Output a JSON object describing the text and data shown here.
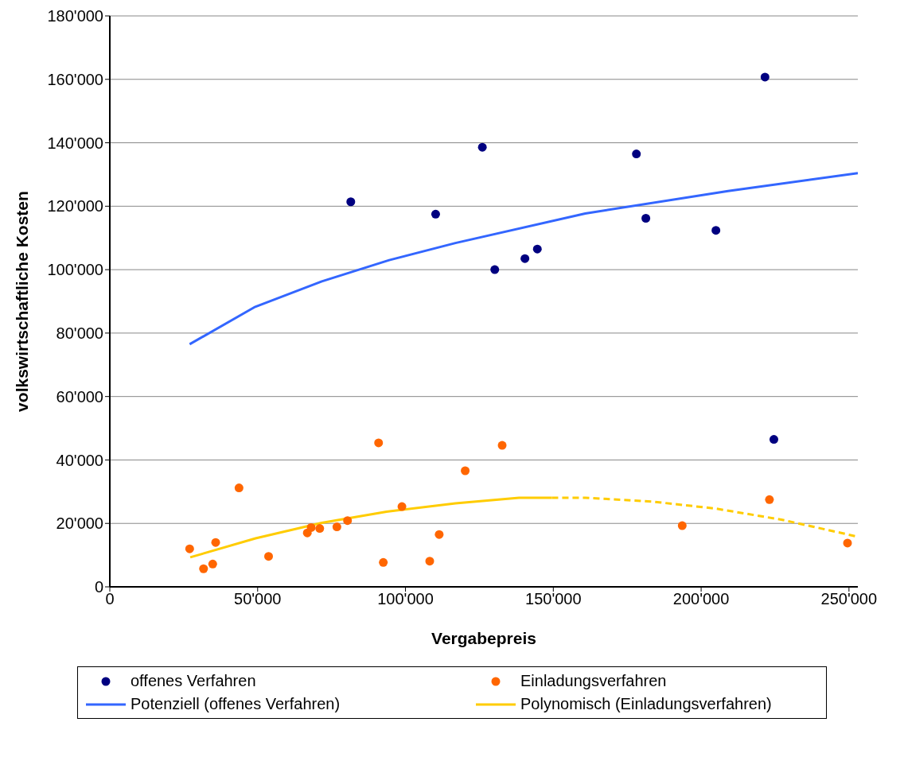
{
  "chart_data": {
    "type": "scatter",
    "xlabel": "Vergabepreis",
    "ylabel": "volkswirtschaftliche Kosten",
    "xlim": [
      0,
      253000
    ],
    "ylim": [
      0,
      180000
    ],
    "xticks": [
      0,
      {
        "value": 50000,
        "label": "50'000"
      },
      {
        "value": 100000,
        "label": "100'000"
      },
      {
        "value": 150000,
        "label": "150'000"
      },
      {
        "value": 200000,
        "label": "200'000"
      },
      {
        "value": 250000,
        "label": "250'000"
      }
    ],
    "yticks": [
      0,
      {
        "value": 20000,
        "label": "20'000"
      },
      {
        "value": 40000,
        "label": "40'000"
      },
      {
        "value": 60000,
        "label": "60'000"
      },
      {
        "value": 80000,
        "label": "80'000"
      },
      {
        "value": 100000,
        "label": "100'000"
      },
      {
        "value": 120000,
        "label": "120'000"
      },
      {
        "value": 140000,
        "label": "140'000"
      },
      {
        "value": 160000,
        "label": "160'000"
      },
      {
        "value": 180000,
        "label": "180'000"
      }
    ],
    "grid": "y",
    "legend": "bottom",
    "series": [
      {
        "name": "offenes Verfahren",
        "marker": "circle",
        "color": "#000080",
        "x": [
          81500,
          110200,
          126000,
          130200,
          140400,
          144600,
          178100,
          181300,
          205000,
          221600,
          224600
        ],
        "values": [
          121400,
          117500,
          138600,
          100000,
          103500,
          106500,
          136500,
          116200,
          112400,
          160700,
          46500
        ]
      },
      {
        "name": "Einladungsverfahren",
        "marker": "circle",
        "color": "#ff6600",
        "x": [
          27000,
          31700,
          34800,
          35800,
          43700,
          53700,
          66800,
          68100,
          71000,
          76800,
          80400,
          90900,
          92500,
          98800,
          108200,
          111400,
          120200,
          132700,
          193600,
          223100,
          249500
        ],
        "values": [
          12000,
          5700,
          7200,
          14000,
          31200,
          9600,
          17000,
          18700,
          18400,
          18900,
          20900,
          45400,
          7700,
          25300,
          8100,
          16500,
          36600,
          44600,
          19300,
          27500,
          13800
        ]
      },
      {
        "name": "Potenziell (offenes Verfahren)",
        "type": "line",
        "marker": "none",
        "line_style": "solid",
        "color": "#3366ff",
        "x": [
          27000,
          49200,
          71700,
          94500,
          116900,
          160800,
          209100,
          253000
        ],
        "values": [
          76500,
          88300,
          96300,
          103000,
          108400,
          117700,
          124800,
          130400
        ]
      },
      {
        "name": "Polynomisch (Einladungsverfahren)",
        "type": "line",
        "marker": "none",
        "line_style": "solid",
        "color": "#ffcc00",
        "x": [
          27200,
          49300,
          71700,
          93600,
          116900,
          138400,
          149500
        ],
        "values": [
          9300,
          15300,
          20200,
          23700,
          26300,
          28100,
          28100
        ]
      },
      {
        "type": "line",
        "marker": "none",
        "line_style": "dashed",
        "color": "#ffcc00",
        "x": [
          149500,
          160800,
          183200,
          204700,
          227100,
          253000
        ],
        "values": [
          28100,
          28100,
          26900,
          24700,
          21200,
          15800
        ]
      }
    ]
  }
}
